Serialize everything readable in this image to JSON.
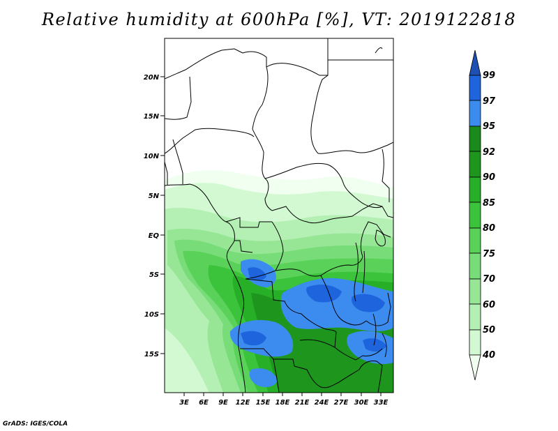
{
  "title": "Relative humidity at 600hPa [%], VT: 2019122818",
  "footer": "GrADS: IGES/COLA",
  "lat_labels": [
    "20N",
    "15N",
    "10N",
    "5N",
    "EQ",
    "5S",
    "10S",
    "15S"
  ],
  "lon_labels": [
    "3E",
    "6E",
    "9E",
    "12E",
    "15E",
    "18E",
    "21E",
    "24E",
    "27E",
    "30E",
    "33E"
  ],
  "colorbar": {
    "labels": [
      "99",
      "97",
      "95",
      "92",
      "90",
      "85",
      "80",
      "75",
      "70",
      "60",
      "50",
      "40"
    ],
    "colors": {
      "c40": "#f0fff0",
      "c50": "#d2f9d2",
      "c60": "#b4f0b4",
      "c70": "#96e696",
      "c75": "#78dc78",
      "c80": "#5ad25a",
      "c85": "#3cc33c",
      "c90": "#28af28",
      "c92": "#1e961e",
      "c95": "#1a8a1a",
      "c97": "#3c8cf0",
      "c99": "#1e64dc",
      "top": "#1e50b4"
    }
  }
}
